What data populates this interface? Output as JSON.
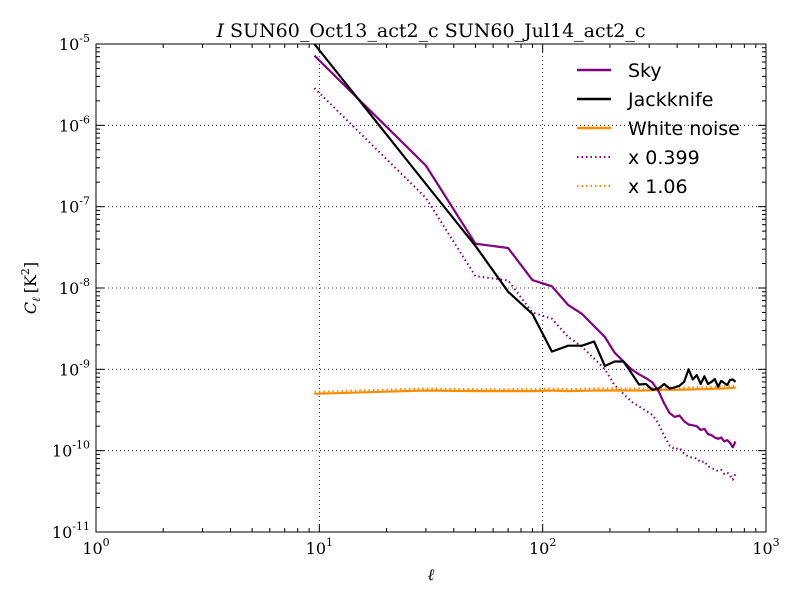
{
  "chart_data": {
    "type": "line",
    "title_prefix": "I",
    "title": "SUN60_Oct13_act2_c SUN60_Jul14_act2_c",
    "xlabel": "ℓ",
    "ylabel": "C",
    "ylabel_sub": "ℓ",
    "ylabel_unit": "[K",
    "ylabel_unit_exp": "2",
    "ylabel_unit_close": "]",
    "x_scale": "log",
    "y_scale": "log",
    "xlim": [
      1,
      1000
    ],
    "ylim": [
      1e-11,
      1e-05
    ],
    "grid": true,
    "legend_position": "top-right",
    "x_ticks": [
      {
        "value": 1,
        "base": "10",
        "exp": "0"
      },
      {
        "value": 10,
        "base": "10",
        "exp": "1"
      },
      {
        "value": 100,
        "base": "10",
        "exp": "2"
      },
      {
        "value": 1000,
        "base": "10",
        "exp": "3"
      }
    ],
    "y_ticks": [
      {
        "value": 1e-05,
        "base": "10",
        "exp": "-5"
      },
      {
        "value": 1e-06,
        "base": "10",
        "exp": "-6"
      },
      {
        "value": 1e-07,
        "base": "10",
        "exp": "-7"
      },
      {
        "value": 1e-08,
        "base": "10",
        "exp": "-8"
      },
      {
        "value": 1e-09,
        "base": "10",
        "exp": "-9"
      },
      {
        "value": 1e-10,
        "base": "10",
        "exp": "-10"
      },
      {
        "value": 1e-11,
        "base": "10",
        "exp": "-11"
      }
    ],
    "series": [
      {
        "name": "Sky",
        "color": "#800080",
        "style": "solid",
        "x": [
          9.5,
          30,
          50,
          70,
          90,
          110,
          130,
          150,
          170,
          190,
          210,
          230,
          250,
          270,
          290,
          310,
          330,
          350,
          370,
          390,
          410,
          430,
          450,
          470,
          490,
          510,
          530,
          550,
          570,
          590,
          610,
          630,
          650,
          670,
          690,
          710,
          730
        ],
        "y": [
          7.2e-06,
          3.2e-07,
          3.5e-08,
          3.1e-08,
          1.25e-08,
          1.05e-08,
          6.2e-09,
          4.8e-09,
          3.4e-09,
          2.5e-09,
          1.6e-09,
          1.25e-09,
          1e-09,
          8.7e-10,
          7.8e-10,
          6.9e-10,
          5.4e-10,
          3.8e-10,
          2.9e-10,
          2.6e-10,
          2.7e-10,
          2.3e-10,
          2.1e-10,
          2.05e-10,
          2e-10,
          1.8e-10,
          1.85e-10,
          1.6e-10,
          1.55e-10,
          1.45e-10,
          1.4e-10,
          1.45e-10,
          1.3e-10,
          1.35e-10,
          1.25e-10,
          1.1e-10,
          1.3e-10
        ]
      },
      {
        "name": "Jackknife",
        "color": "#000000",
        "style": "solid",
        "x": [
          9.5,
          30,
          50,
          70,
          90,
          110,
          130,
          150,
          170,
          190,
          210,
          230,
          250,
          270,
          290,
          310,
          330,
          350,
          370,
          390,
          410,
          430,
          450,
          470,
          490,
          510,
          530,
          550,
          570,
          590,
          610,
          630,
          650,
          670,
          690,
          710,
          730
        ],
        "y": [
          1e-05,
          1.9e-07,
          3.3e-08,
          9e-09,
          4.8e-09,
          1.65e-09,
          1.95e-09,
          1.95e-09,
          2.2e-09,
          1.1e-09,
          1.25e-09,
          1.25e-09,
          9e-10,
          6.5e-10,
          6.6e-10,
          5.6e-10,
          5.8e-10,
          6.6e-10,
          5.8e-10,
          6e-10,
          6.3e-10,
          7e-10,
          1e-09,
          7.5e-10,
          8.5e-10,
          6.6e-10,
          8.2e-10,
          6.6e-10,
          7e-10,
          7.6e-10,
          6.1e-10,
          7.2e-10,
          6.8e-10,
          6.4e-10,
          7.4e-10,
          7.5e-10,
          7e-10
        ]
      },
      {
        "name": "White noise",
        "color": "#FF8C00",
        "style": "solid",
        "x": [
          9.5,
          30,
          50,
          70,
          90,
          110,
          130,
          150,
          170,
          190,
          210,
          230,
          250,
          270,
          290,
          310,
          330,
          350,
          370,
          390,
          410,
          430,
          450,
          470,
          490,
          510,
          530,
          550,
          570,
          590,
          610,
          630,
          650,
          670,
          690,
          710,
          730
        ],
        "y": [
          5e-10,
          5.5e-10,
          5.4e-10,
          5.4e-10,
          5.4e-10,
          5.5e-10,
          5.4e-10,
          5.45e-10,
          5.5e-10,
          5.5e-10,
          5.5e-10,
          5.5e-10,
          5.5e-10,
          5.5e-10,
          5.5e-10,
          5.55e-10,
          5.55e-10,
          5.6e-10,
          5.6e-10,
          5.6e-10,
          5.6e-10,
          5.65e-10,
          5.65e-10,
          5.65e-10,
          5.7e-10,
          5.7e-10,
          5.7e-10,
          5.75e-10,
          5.75e-10,
          5.8e-10,
          5.8e-10,
          5.8e-10,
          5.85e-10,
          5.85e-10,
          5.9e-10,
          5.9e-10,
          6e-10
        ]
      },
      {
        "name": "x 0.399",
        "color": "#800080",
        "style": "dotted",
        "x": [
          9.5,
          30,
          50,
          70,
          90,
          110,
          130,
          150,
          170,
          190,
          210,
          230,
          250,
          270,
          290,
          310,
          330,
          350,
          370,
          390,
          410,
          430,
          450,
          470,
          490,
          510,
          530,
          550,
          570,
          590,
          610,
          630,
          650,
          670,
          690,
          710,
          730
        ],
        "y": [
          2.87e-06,
          1.28e-07,
          1.4e-08,
          1.24e-08,
          5e-09,
          4.2e-09,
          2.5e-09,
          1.9e-09,
          1.36e-09,
          1e-09,
          6.4e-10,
          5e-10,
          4e-10,
          3.5e-10,
          3.1e-10,
          2.75e-10,
          2.15e-10,
          1.52e-10,
          1.16e-10,
          1.04e-10,
          1.08e-10,
          9.2e-11,
          8.4e-11,
          8.2e-11,
          8e-11,
          7.2e-11,
          7.4e-11,
          6.4e-11,
          6.2e-11,
          5.8e-11,
          5.6e-11,
          5.8e-11,
          5.2e-11,
          5.4e-11,
          5e-11,
          4.4e-11,
          5.2e-11
        ]
      },
      {
        "name": "x 1.06",
        "color": "#FF8C00",
        "style": "dotted",
        "x": [
          9.5,
          30,
          50,
          70,
          90,
          110,
          130,
          150,
          170,
          190,
          210,
          230,
          250,
          270,
          290,
          310,
          330,
          350,
          370,
          390,
          410,
          430,
          450,
          470,
          490,
          510,
          530,
          550,
          570,
          590,
          610,
          630,
          650,
          670,
          690,
          710,
          730
        ],
        "y": [
          5.3e-10,
          5.83e-10,
          5.72e-10,
          5.72e-10,
          5.72e-10,
          5.83e-10,
          5.72e-10,
          5.78e-10,
          5.83e-10,
          5.83e-10,
          5.83e-10,
          5.83e-10,
          5.83e-10,
          5.83e-10,
          5.83e-10,
          5.88e-10,
          5.88e-10,
          5.94e-10,
          5.94e-10,
          5.94e-10,
          5.94e-10,
          5.99e-10,
          5.99e-10,
          5.99e-10,
          6.04e-10,
          6.04e-10,
          6.04e-10,
          6.1e-10,
          6.1e-10,
          6.15e-10,
          6.15e-10,
          6.15e-10,
          6.2e-10,
          6.2e-10,
          6.25e-10,
          6.25e-10,
          6.36e-10
        ]
      }
    ]
  }
}
